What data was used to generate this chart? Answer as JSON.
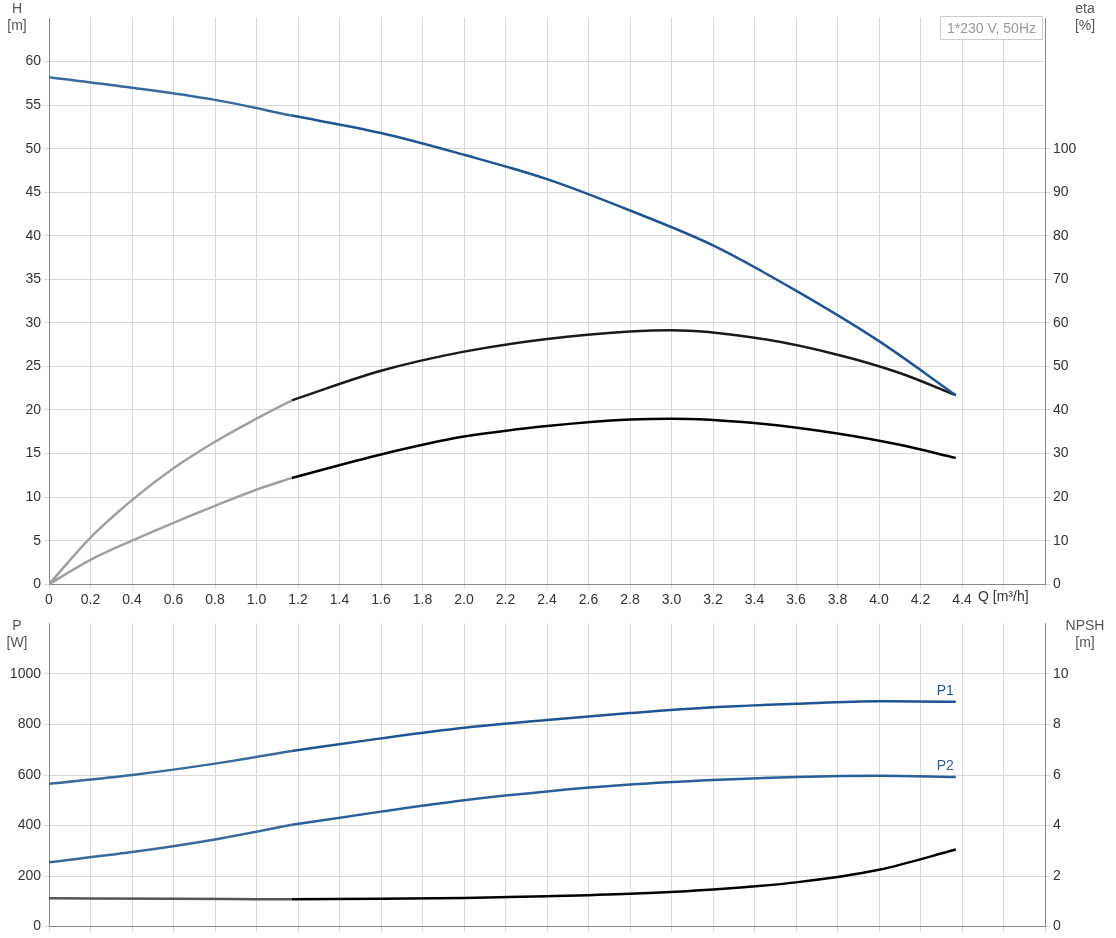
{
  "chart_data": [
    {
      "type": "line",
      "title": "1*230 V, 50Hz",
      "ylabel": "H\n[m]",
      "y2label": "eta\n[%]",
      "xlabel": "Q [m³/h]",
      "xlim": [
        0,
        4.8
      ],
      "xticks": [
        0,
        0.2,
        0.4,
        0.6,
        0.8,
        {
          "value": 1,
          "label": "1.0"
        },
        1.2,
        1.4,
        1.6,
        1.8,
        {
          "value": 2,
          "label": "2.0"
        },
        2.2,
        2.4,
        2.6,
        2.8,
        {
          "value": 3,
          "label": "3.0"
        },
        3.2,
        3.4,
        3.6,
        3.8,
        {
          "value": 4,
          "label": "4.0"
        },
        4.2,
        4.4,
        {
          "value": 4.6,
          "label": null
        },
        {
          "value": 4.8,
          "label": null
        }
      ],
      "ylim": [
        0,
        65
      ],
      "yticks": [
        0,
        5,
        10,
        15,
        20,
        25,
        30,
        35,
        40,
        45,
        50,
        55,
        60
      ],
      "y2lim": [
        0,
        130
      ],
      "y2ticks": [
        0,
        10,
        20,
        30,
        40,
        50,
        60,
        70,
        80,
        90,
        100
      ],
      "grid": true,
      "marker": "none",
      "series": [
        {
          "color": "#3a6a9c",
          "x": [
            0,
            0.4,
            0.8,
            1.17
          ],
          "values": [
            58.2,
            57.0,
            55.6,
            53.8
          ]
        },
        {
          "color": "#1f5591",
          "x": [
            1.17,
            1.6,
            2.0,
            2.4,
            2.8,
            3.2,
            3.6,
            4.0,
            4.37
          ],
          "values": [
            53.8,
            51.8,
            49.3,
            46.5,
            42.9,
            38.9,
            33.7,
            27.9,
            21.7
          ]
        },
        {
          "color": "#a0a0a0",
          "axis": "y2",
          "x": [
            0,
            0.2,
            0.4,
            0.6,
            0.8,
            1.0,
            1.17
          ],
          "values": [
            0,
            10.7,
            19.3,
            26.6,
            32.7,
            38,
            42.2
          ]
        },
        {
          "color": "#1a1a1a",
          "axis": "y2",
          "x": [
            1.17,
            1.6,
            2.0,
            2.4,
            2.8,
            3.0,
            3.4,
            3.8,
            4.1,
            4.37
          ],
          "values": [
            42.2,
            49,
            53.4,
            56.3,
            58,
            58.3,
            56.6,
            52.7,
            48.5,
            43.4
          ]
        },
        {
          "color": "#a0a0a0",
          "axis": "y2",
          "x": [
            0,
            0.2,
            0.4,
            0.6,
            0.8,
            1.0,
            1.17
          ],
          "values": [
            0,
            5.6,
            10,
            14.1,
            18,
            21.7,
            24.4
          ]
        },
        {
          "color": "#000000",
          "axis": "y2",
          "x": [
            1.17,
            1.6,
            2.0,
            2.4,
            2.8,
            3.0,
            3.4,
            3.8,
            4.1,
            4.37
          ],
          "values": [
            24.4,
            29.8,
            33.9,
            36.3,
            37.8,
            38,
            37,
            34.6,
            32,
            29
          ]
        }
      ]
    },
    {
      "type": "line",
      "ylabel": "P\n[W]",
      "y2label": "NPSH\n[m]",
      "tick_labels": "y",
      "xlim": [
        0,
        4.8
      ],
      "xticks": [
        0,
        0.2,
        0.4,
        0.6,
        0.8,
        1.0,
        1.2,
        1.4,
        1.6,
        1.8,
        2.0,
        2.2,
        2.4,
        2.6,
        2.8,
        3.0,
        3.2,
        3.4,
        3.6,
        3.8,
        4.0,
        4.2,
        4.4,
        4.6,
        4.8
      ],
      "ylim": [
        0,
        1200
      ],
      "yticks": [
        0,
        200,
        400,
        600,
        800,
        1000
      ],
      "y2lim": [
        0,
        12
      ],
      "y2ticks": [
        0,
        2,
        4,
        6,
        8,
        10
      ],
      "grid": true,
      "marker": "none",
      "series": [
        {
          "color": "#3a6a9c",
          "x": [
            0,
            0.4,
            0.8,
            1.17
          ],
          "values": [
            565,
            600,
            645,
            695
          ]
        },
        {
          "name": "P1",
          "color": "#1f5591",
          "x": [
            1.17,
            1.6,
            2.0,
            2.4,
            2.8,
            3.2,
            3.6,
            4.0,
            4.37
          ],
          "values": [
            695,
            745,
            787,
            818,
            845,
            868,
            882,
            892,
            890
          ]
        },
        {
          "color": "#3a6a9c",
          "x": [
            0,
            0.4,
            0.8,
            1.17
          ],
          "values": [
            255,
            295,
            345,
            403
          ]
        },
        {
          "name": "P2",
          "color": "#2a5f98",
          "x": [
            1.17,
            1.6,
            2.0,
            2.4,
            2.8,
            3.2,
            3.6,
            4.0,
            4.37
          ],
          "values": [
            403,
            455,
            500,
            535,
            562,
            580,
            592,
            597,
            592
          ]
        },
        {
          "color": "#555555",
          "axis": "y2",
          "x": [
            0,
            0.6,
            1.17
          ],
          "values": [
            1.12,
            1.1,
            1.08
          ]
        },
        {
          "color": "#000000",
          "axis": "y2",
          "x": [
            1.17,
            1.6,
            2.0,
            2.4,
            2.8,
            3.2,
            3.6,
            4.0,
            4.37
          ],
          "values": [
            1.08,
            1.1,
            1.13,
            1.2,
            1.3,
            1.47,
            1.75,
            2.25,
            3.05
          ]
        }
      ]
    }
  ]
}
